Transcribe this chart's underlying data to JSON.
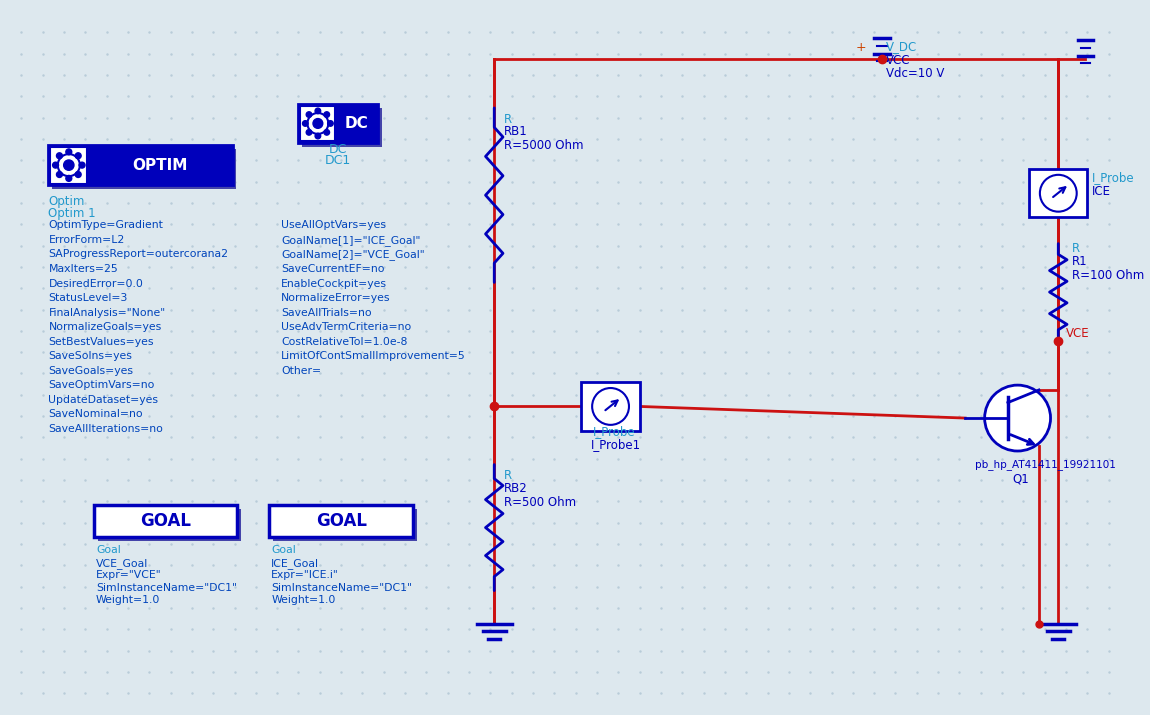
{
  "bg_color": "#dde8ee",
  "dot_color": "#b8ccd8",
  "wire_color": "#cc1111",
  "blue_dark": "#0000bb",
  "blue_label": "#2299cc",
  "text_color": "#0044bb",
  "optim_texts_left": [
    "Optim",
    "Optim 1",
    "OptimType=Gradient",
    "ErrorForm=L2",
    "SAProgressReport=outercorana2",
    "MaxIters=25",
    "DesiredError=0.0",
    "StatusLevel=3",
    "FinalAnalysis=\"None\"",
    "NormalizeGoals=yes",
    "SetBestValues=yes",
    "SaveSolns=yes",
    "SaveGoals=yes",
    "SaveOptimVars=no",
    "UpdateDataset=yes",
    "SaveNominal=no",
    "SaveAllIterations=no"
  ],
  "optim_texts_right": [
    "UseAllOptVars=yes",
    "GoalName[1]=\"ICE_Goal\"",
    "GoalName[2]=\"VCE_Goal\"",
    "SaveCurrentEF=no",
    "EnableCockpit=yes",
    "NormalizeError=yes",
    "SaveAllTrials=no",
    "UseAdvTermCriteria=no",
    "CostRelativeTol=1.0e-8",
    "LimitOfContSmallImprovement=5",
    "Other="
  ],
  "goal1_texts": [
    "Goal",
    "VCE_Goal",
    "Expr=\"VCE\"",
    "SimInstanceName=\"DC1\"",
    "Weight=1.0"
  ],
  "goal2_texts": [
    "Goal",
    "ICE_Goal",
    "Expr=\"ICE.i\"",
    "SimInstanceName=\"DC1\"",
    "Weight=1.0"
  ]
}
